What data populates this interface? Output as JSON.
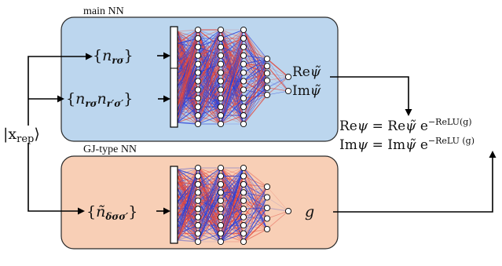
{
  "panels": {
    "main": {
      "title": "main NN",
      "color": "#bcd6ee",
      "stroke": "#2a2a2a"
    },
    "gj": {
      "title": "GJ-type NN",
      "color": "#f8cfb6",
      "stroke": "#2a2a2a"
    }
  },
  "input": {
    "ket": "|x",
    "ket_sub": "rep",
    "ket_close": "⟩"
  },
  "features": {
    "n_single": {
      "open": "{",
      "var": "n",
      "sub": "rσ",
      "close": "}"
    },
    "n_pair": {
      "open": "{",
      "var1": "n",
      "sub1": "rσ",
      "var2": "n",
      "sub2": "r′σ′",
      "close": "}"
    },
    "n_gj": {
      "open": "{",
      "var": "ñ",
      "sub": "δσσ′",
      "close": "}"
    }
  },
  "outputs": {
    "re_prefix": "Re",
    "im_prefix": "Im",
    "psi_tilde": "ψ̃",
    "g": "g"
  },
  "equations": {
    "line1": {
      "lhs_prefix": "Re",
      "lhs_var": "ψ",
      "eq": " = ",
      "rhs_prefix": "Re",
      "rhs_var": "ψ̃",
      "exp_base": " e",
      "exp": "−ReLU(g)"
    },
    "line2": {
      "lhs_prefix": "Im",
      "lhs_var": "ψ",
      "eq": " = ",
      "rhs_prefix": "Im",
      "rhs_var": "ψ̃",
      "exp_base": " e",
      "exp": "−ReLU (g)"
    }
  },
  "colors": {
    "edge_red": "#e0453a",
    "edge_blue": "#2b3fd6",
    "arrow": "#000000",
    "neuron_fill": "#ffffff"
  }
}
